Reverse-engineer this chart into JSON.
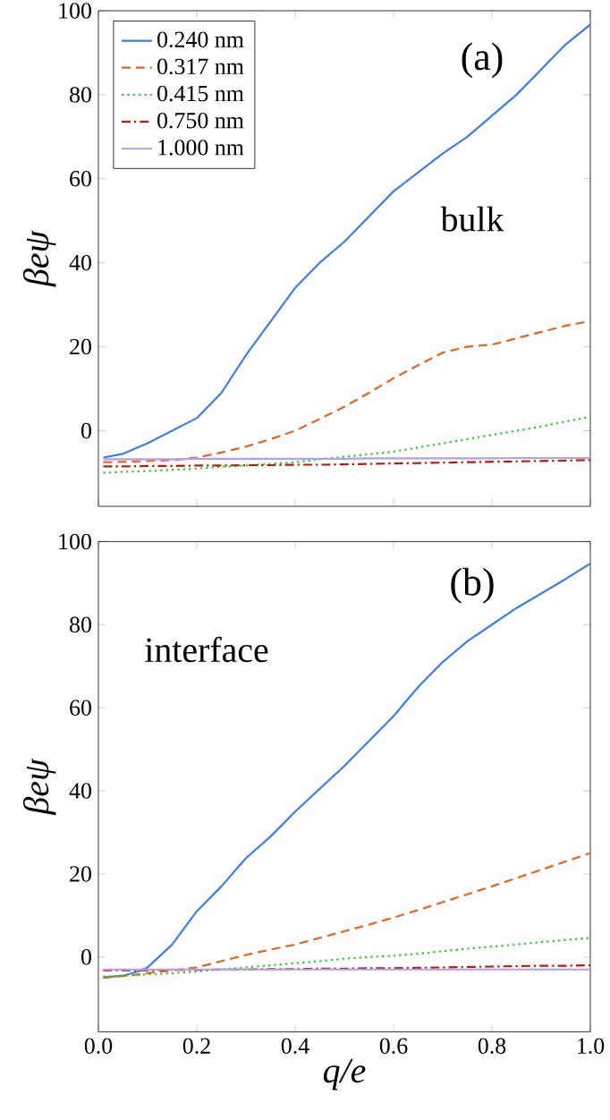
{
  "chart_data": [
    {
      "type": "line",
      "ylabel": "βeψ",
      "xlim": [
        0,
        1
      ],
      "ylim": [
        -18,
        100
      ],
      "xticks": [
        {
          "value": 0,
          "label": null
        },
        {
          "value": 0.2,
          "label": null
        },
        {
          "value": 0.4,
          "label": null
        },
        {
          "value": 0.6,
          "label": null
        },
        {
          "value": 0.8,
          "label": null
        },
        {
          "value": 1,
          "label": null
        }
      ],
      "yticks": [
        0,
        20,
        40,
        60,
        80,
        100
      ],
      "tick_labels": "y",
      "legend": "top left",
      "grid": false,
      "annotations": [
        "(a)",
        "bulk"
      ],
      "x": [
        0.01,
        0.05,
        0.1,
        0.15,
        0.2,
        0.25,
        0.3,
        0.35,
        0.4,
        0.45,
        0.5,
        0.55,
        0.6,
        0.65,
        0.7,
        0.75,
        0.8,
        0.85,
        0.9,
        0.95,
        1.0
      ],
      "series": [
        {
          "name": "0.240 nm",
          "color": "#3c7ee8",
          "line_style": "solid",
          "values": [
            -6.4,
            -5.5,
            -3,
            0,
            3,
            9,
            18,
            26,
            34,
            40,
            45,
            51,
            57,
            61.5,
            66,
            70,
            75,
            80,
            86,
            92,
            96.7
          ]
        },
        {
          "name": "0.317 nm",
          "color": "#e8641e",
          "line_style": "dashed",
          "values": [
            -7.5,
            -7.4,
            -7.2,
            -7,
            -6.4,
            -5.2,
            -3.8,
            -2,
            0,
            2.8,
            5.7,
            9,
            12.5,
            15.6,
            18.6,
            20,
            20.5,
            22,
            23.5,
            25,
            26.1
          ]
        },
        {
          "name": "0.415 nm",
          "color": "#33cc33",
          "line_style": "dotted",
          "values": [
            -10,
            -9.8,
            -9.6,
            -9.3,
            -9,
            -8.6,
            -8.3,
            -7.9,
            -7.5,
            -6.8,
            -6.2,
            -5.6,
            -5,
            -4,
            -3,
            -2,
            -1,
            0,
            1,
            2.2,
            3.3
          ]
        },
        {
          "name": "0.750 nm",
          "color": "#b81c0c",
          "line_style": "dashdot",
          "values": [
            -8.5,
            -8.5,
            -8.4,
            -8.4,
            -8.3,
            -8.3,
            -8.2,
            -8.2,
            -8.1,
            -8.1,
            -8,
            -7.9,
            -7.8,
            -7.7,
            -7.6,
            -7.5,
            -7.4,
            -7.3,
            -7.2,
            -7.1,
            -7
          ]
        },
        {
          "name": "1.000 nm",
          "color": "#b0a0f0",
          "line_style": "solid",
          "values": [
            -6.8,
            -6.8,
            -6.8,
            -6.8,
            -6.7,
            -6.7,
            -6.7,
            -6.7,
            -6.7,
            -6.7,
            -6.7,
            -6.6,
            -6.6,
            -6.6,
            -6.6,
            -6.6,
            -6.6,
            -6.5,
            -6.5,
            -6.5,
            -6.5
          ]
        }
      ]
    },
    {
      "type": "line",
      "xlabel": "q/e",
      "ylabel": "βeψ",
      "xlim": [
        0,
        1
      ],
      "ylim": [
        -18,
        100
      ],
      "xticks": [
        {
          "value": 0,
          "label": "0.0"
        },
        {
          "value": 0.2,
          "label": "0.2"
        },
        {
          "value": 0.4,
          "label": "0.4"
        },
        {
          "value": 0.6,
          "label": "0.6"
        },
        {
          "value": 0.8,
          "label": "0.8"
        },
        {
          "value": 1,
          "label": "1.0"
        }
      ],
      "yticks": [
        0,
        20,
        40,
        60,
        80,
        100
      ],
      "grid": false,
      "annotations": [
        "(b)",
        "interface"
      ],
      "x": [
        0.01,
        0.05,
        0.08,
        0.1,
        0.15,
        0.2,
        0.25,
        0.3,
        0.35,
        0.4,
        0.45,
        0.5,
        0.55,
        0.6,
        0.65,
        0.7,
        0.75,
        0.8,
        0.85,
        0.9,
        0.95,
        1.0
      ],
      "series": [
        {
          "color": "#3c7ee8",
          "line_style": "solid",
          "values": [
            -4.9,
            -4.5,
            -3.5,
            -2.5,
            3,
            11,
            17,
            23.8,
            29,
            35,
            40.5,
            46,
            52,
            58,
            65,
            71,
            76,
            80,
            84,
            87.5,
            91,
            94.7
          ]
        },
        {
          "color": "#e8641e",
          "line_style": "dashed",
          "values": [
            -5,
            -4.6,
            -4.2,
            -3.9,
            -3.2,
            -2.5,
            -1,
            0.5,
            1.8,
            3,
            4.6,
            6.2,
            7.8,
            9.5,
            11.3,
            13.2,
            15.1,
            17,
            19,
            21,
            23,
            25
          ]
        },
        {
          "color": "#33cc33",
          "line_style": "dotted",
          "values": [
            -4.7,
            -4.5,
            -4.3,
            -4.2,
            -3.9,
            -3.5,
            -3,
            -2.5,
            -2,
            -1.5,
            -1,
            -0.4,
            0,
            0.3,
            0.8,
            1.4,
            2,
            2.5,
            3,
            3.6,
            4.1,
            4.6
          ]
        },
        {
          "color": "#b81c0c",
          "line_style": "dashdot",
          "values": [
            -3.2,
            -3.2,
            -3.2,
            -3.2,
            -3.1,
            -3.1,
            -3.0,
            -3.0,
            -2.9,
            -2.9,
            -2.8,
            -2.8,
            -2.7,
            -2.7,
            -2.6,
            -2.5,
            -2.4,
            -2.3,
            -2.2,
            -2.1,
            -2.1,
            -2
          ]
        },
        {
          "color": "#b0a0f0",
          "line_style": "solid",
          "values": [
            -3,
            -3,
            -3,
            -3,
            -3,
            -3,
            -3,
            -3,
            -3,
            -3,
            -3,
            -3,
            -3,
            -3,
            -3,
            -3,
            -3,
            -3,
            -3,
            -3,
            -3,
            -3
          ]
        }
      ]
    }
  ]
}
